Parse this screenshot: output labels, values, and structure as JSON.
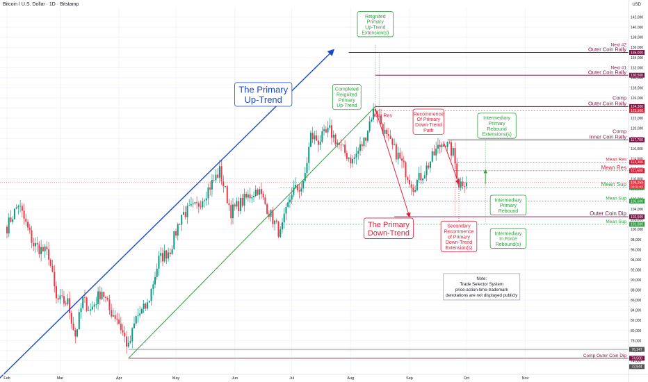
{
  "header": {
    "symbol_title": "Bitcoin / U.S. Dollar · 1D · Bitstamp",
    "currency": "USD"
  },
  "colors": {
    "up": "#089981",
    "down": "#f23645",
    "blue": "#1848cc",
    "green": "#2e9e3e",
    "red": "#e01e37",
    "maroon": "#7b1646",
    "gray": "#888888",
    "grid": "#f0f3fa"
  },
  "chart_data": {
    "type": "candlestick",
    "title": "Bitcoin / U.S. Dollar · 1D · Bitstamp",
    "ylabel": "USD",
    "ylim": [
      72000,
      144000
    ],
    "y_ticks": [
      74000,
      76000,
      78000,
      80000,
      82000,
      84000,
      86000,
      88000,
      90000,
      92000,
      94000,
      96000,
      98000,
      100000,
      102000,
      104000,
      106000,
      108000,
      110000,
      112000,
      114000,
      116000,
      118000,
      120000,
      122000,
      124000,
      126000,
      128000,
      130000,
      132000,
      134000,
      136000,
      138000,
      140000,
      142000
    ],
    "x_ticks": [
      {
        "label": "Feb",
        "t": 0
      },
      {
        "label": "Mar",
        "t": 28
      },
      {
        "label": "Apr",
        "t": 59
      },
      {
        "label": "May",
        "t": 89
      },
      {
        "label": "Jun",
        "t": 120
      },
      {
        "label": "Jul",
        "t": 150
      },
      {
        "label": "Aug",
        "t": 181
      },
      {
        "label": "Sep",
        "t": 212
      },
      {
        "label": "Oct",
        "t": 242
      },
      {
        "label": "Nov",
        "t": 273
      }
    ],
    "waypoints": [
      [
        0,
        100500
      ],
      [
        6,
        105000
      ],
      [
        14,
        97000
      ],
      [
        22,
        95000
      ],
      [
        26,
        86000
      ],
      [
        32,
        85500
      ],
      [
        36,
        79000
      ],
      [
        40,
        86000
      ],
      [
        44,
        84000
      ],
      [
        50,
        88000
      ],
      [
        54,
        84000
      ],
      [
        58,
        82500
      ],
      [
        64,
        76500
      ],
      [
        68,
        82500
      ],
      [
        74,
        85000
      ],
      [
        80,
        94000
      ],
      [
        86,
        96000
      ],
      [
        92,
        103000
      ],
      [
        100,
        104500
      ],
      [
        106,
        108000
      ],
      [
        112,
        111500
      ],
      [
        118,
        103500
      ],
      [
        124,
        105500
      ],
      [
        132,
        108000
      ],
      [
        138,
        103500
      ],
      [
        144,
        99000
      ],
      [
        150,
        107500
      ],
      [
        156,
        108500
      ],
      [
        160,
        118500
      ],
      [
        164,
        117500
      ],
      [
        170,
        119500
      ],
      [
        176,
        116000
      ],
      [
        182,
        113500
      ],
      [
        188,
        117500
      ],
      [
        192,
        122500
      ],
      [
        194,
        124000
      ],
      [
        200,
        118000
      ],
      [
        206,
        114500
      ],
      [
        210,
        111500
      ],
      [
        214,
        108500
      ],
      [
        220,
        111500
      ],
      [
        226,
        115500
      ],
      [
        230,
        117500
      ],
      [
        235,
        115000
      ],
      [
        238,
        109000
      ],
      [
        242,
        109800
      ]
    ],
    "current_price": 109259,
    "countdown": "02:34:42",
    "levels": [
      {
        "label_top": "Next #2",
        "label": "Outer Coin Rally",
        "value": 135000,
        "price_tag": "135,000",
        "kind": "maroon",
        "line": "solid",
        "from_t": 180
      },
      {
        "label_top": "Next #1",
        "label": "Outer Coin Rally",
        "value": 130500,
        "price_tag": "130,500",
        "kind": "maroon",
        "line": "solid",
        "from_t": 194
      },
      {
        "label_top": "Comp",
        "label": "Outer Coin Rally",
        "value": 124300,
        "price_tag": "124,300",
        "kind": "maroon",
        "line": "solid",
        "from_t": 194
      },
      {
        "label_top": "",
        "label": "",
        "value": 123500,
        "price_tag": "123,500",
        "kind": "red",
        "line": "dashed",
        "from_t": 194
      },
      {
        "label_top": "Comp",
        "label": "Inner Coin Rally",
        "value": 117700,
        "price_tag": "117,700",
        "kind": "maroon",
        "line": "solid",
        "from_t": 232
      },
      {
        "label_top": "",
        "label": "Mean Res",
        "value": 113300,
        "price_tag": "113,300",
        "kind": "red",
        "line": "dashed",
        "from_t": 236
      },
      {
        "label_top": "",
        "label": "Mean Res",
        "value": 111600,
        "price_tag": "111,600",
        "kind": "red",
        "line": "dashed",
        "from_t": 236
      },
      {
        "label_top": "",
        "label": "Mean Sup",
        "value": 108300,
        "price_tag": "108,300",
        "kind": "green",
        "line": "dashed",
        "from_t": 144
      },
      {
        "label_top": "",
        "label": "Mean Sup",
        "value": 105600,
        "price_tag": "105,600",
        "kind": "green",
        "line": "dashed",
        "from_t": 150
      },
      {
        "label_top": "",
        "label": "Outer Coin Dip",
        "value": 102500,
        "price_tag": "102,500",
        "kind": "maroon",
        "line": "solid",
        "from_t": 204
      },
      {
        "label_top": "",
        "label": "Mean Sup",
        "value": 101000,
        "price_tag": "101,000",
        "kind": "green",
        "line": "dashed",
        "from_t": 144
      },
      {
        "label_top": "",
        "label": "Comp Outer Coin Dip",
        "value": 74500,
        "price_tag": "74,500",
        "kind": "maroon",
        "line": "solid",
        "from_t": 64
      },
      {
        "label_top": "",
        "label": "",
        "value": 76247,
        "price_tag": "76,247",
        "kind": "gray",
        "line": "solid",
        "from_t": 64
      },
      {
        "label_top": "",
        "label": "",
        "value": 72844,
        "price_tag": "72,844",
        "kind": "gray",
        "line": "none",
        "from_t": 0
      }
    ],
    "trendlines": [
      {
        "name": "primary-uptrend-line",
        "kind": "blue",
        "from": [
          -4,
          70500
        ],
        "to": [
          172,
          135500
        ],
        "arrow": true
      },
      {
        "name": "reignited-uptrend-line",
        "kind": "green",
        "from": [
          64,
          74500
        ],
        "to": [
          194,
          124300
        ],
        "arrow": false
      },
      {
        "name": "primary-downtrend-line",
        "kind": "red",
        "from": [
          194,
          123800
        ],
        "to": [
          212,
          102500
        ],
        "arrow": true
      },
      {
        "name": "secondary-downtrend-line",
        "kind": "red",
        "from": [
          230,
          117200
        ],
        "to": [
          238,
          109000
        ],
        "arrow": true
      }
    ],
    "annotations": [
      {
        "name": "primary-uptrend-label",
        "kind": "blue",
        "lines": [
          "The Primary",
          "Up-Trend"
        ],
        "t": 135,
        "v": 126700,
        "size": 13
      },
      {
        "name": "reignited-extension-label",
        "kind": "green",
        "lines": [
          "Reignited",
          "Primary",
          "Up-Trend",
          "Extension(s)"
        ],
        "t": 194,
        "v": 140600,
        "size": 7
      },
      {
        "name": "completed-reignited-label",
        "kind": "green",
        "lines": [
          "Completed",
          "Reignited",
          "Primary",
          "Up-Trend"
        ],
        "t": 179,
        "v": 126200,
        "size": 7
      },
      {
        "name": "key-res-label",
        "kind": "red",
        "lines": [
          "Key Res"
        ],
        "t": 198,
        "v": 122600,
        "size": 7
      },
      {
        "name": "recommence-downtrend-label",
        "kind": "red",
        "lines": [
          "Recommence",
          "Of Primary",
          "Down-Trend",
          "Path"
        ],
        "t": 222,
        "v": 121300,
        "size": 7
      },
      {
        "name": "primary-downtrend-label",
        "kind": "red",
        "lines": [
          "The Primary",
          "Down-Trend"
        ],
        "t": 201,
        "v": 100200,
        "size": 11
      },
      {
        "name": "intermediary-rebound-ext-label",
        "kind": "green",
        "lines": [
          "Intermediary",
          "Primary",
          "Rebound",
          "Extensions(s)"
        ],
        "t": 258,
        "v": 120500,
        "size": 7
      },
      {
        "name": "intermediary-rebound-label",
        "kind": "green",
        "lines": [
          "Intermediary",
          "Primary",
          "Rebound"
        ],
        "t": 264,
        "v": 104800,
        "size": 7
      },
      {
        "name": "secondary-recommence-label",
        "kind": "red",
        "lines": [
          "Secondary",
          "Recommence",
          "of Primary",
          "Down-Trend",
          "Extension(s)"
        ],
        "t": 238,
        "v": 98600,
        "size": 7
      },
      {
        "name": "intermediary-in-force-label",
        "kind": "green",
        "lines": [
          "Intermediary",
          "In Force",
          "Rebound(s)"
        ],
        "t": 264,
        "v": 98200,
        "size": 7
      }
    ],
    "note": {
      "lines": [
        "Note:",
        "Trade Selector System",
        "price-action-time-trademark",
        "denotations are not displayed publicly"
      ],
      "t": 250,
      "v": 88500
    }
  }
}
